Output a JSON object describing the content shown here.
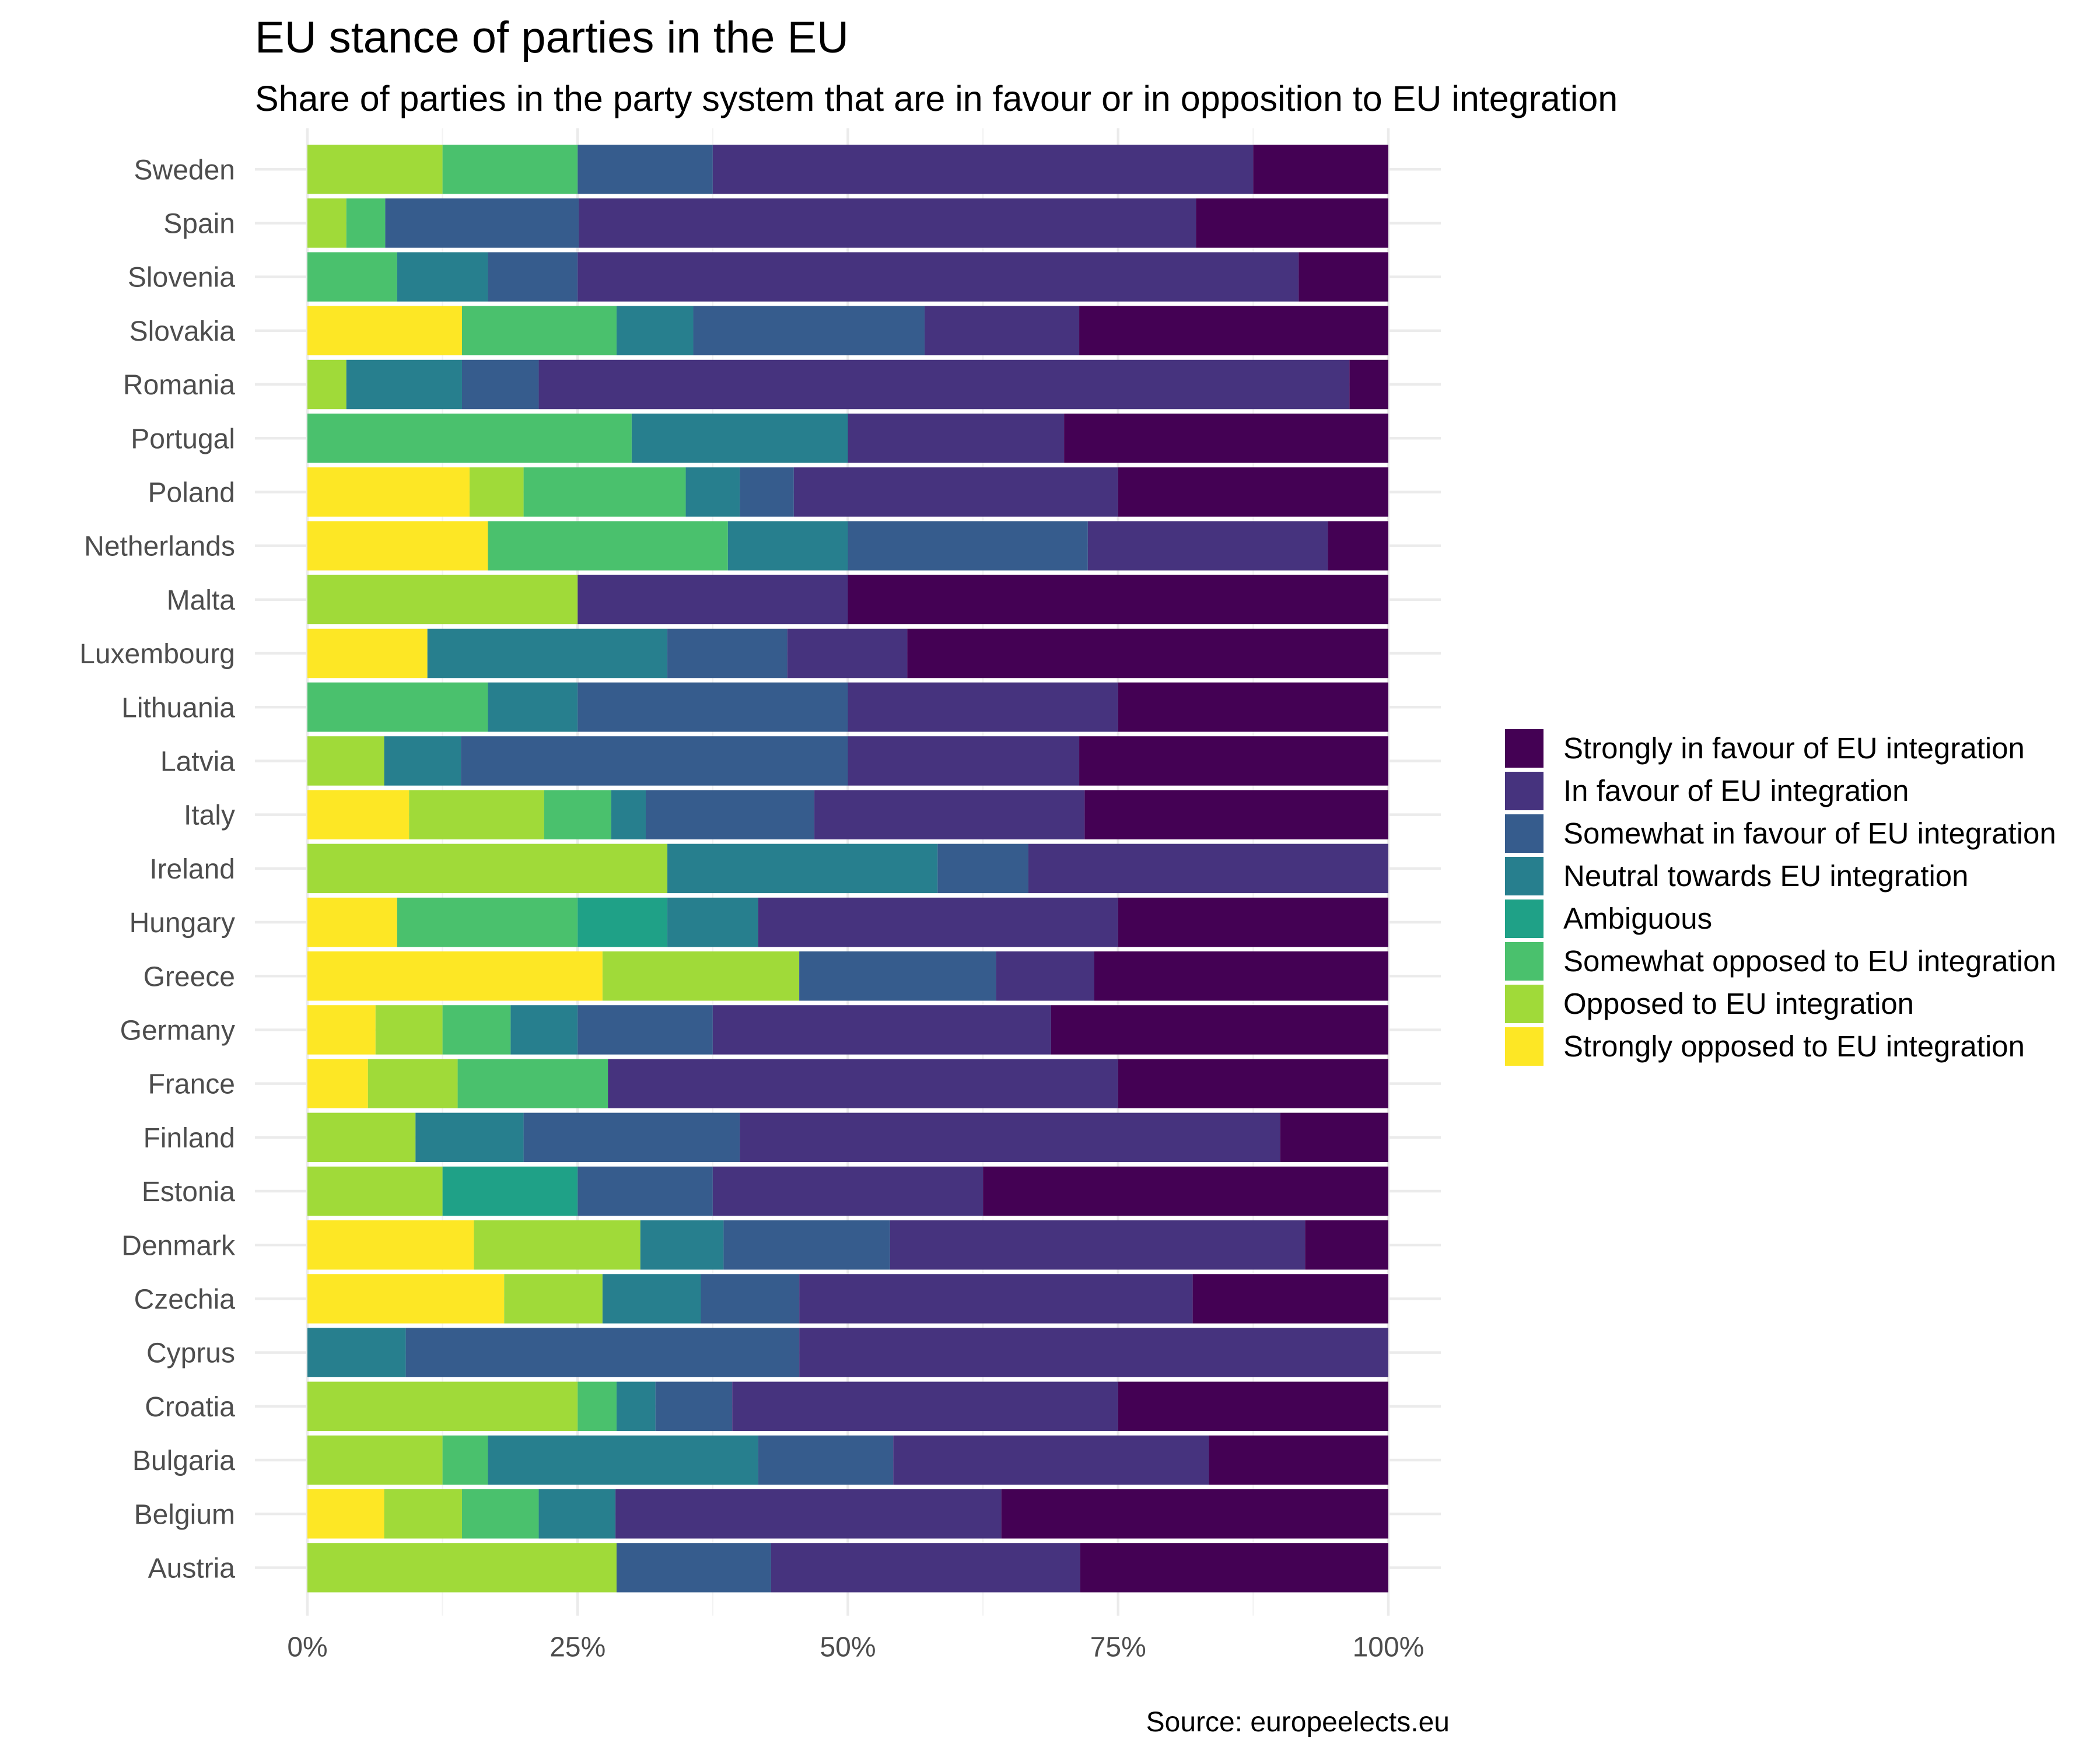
{
  "chart_data": {
    "type": "bar",
    "orientation": "horizontal",
    "stacked": "percent",
    "title": "EU stance of parties in the EU",
    "subtitle": "Share of parties in the party system that are in favour or in opposition to EU integration",
    "caption": "Source: europeelects.eu",
    "xlabel": "",
    "ylabel": "",
    "xlim": [
      0,
      100
    ],
    "x_ticks": [
      "0%",
      "25%",
      "50%",
      "75%",
      "100%"
    ],
    "grid": true,
    "legend_position": "right",
    "categories": [
      "Sweden",
      "Spain",
      "Slovenia",
      "Slovakia",
      "Romania",
      "Portugal",
      "Poland",
      "Netherlands",
      "Malta",
      "Luxembourg",
      "Lithuania",
      "Latvia",
      "Italy",
      "Ireland",
      "Hungary",
      "Greece",
      "Germany",
      "France",
      "Finland",
      "Estonia",
      "Denmark",
      "Czechia",
      "Cyprus",
      "Croatia",
      "Bulgaria",
      "Belgium",
      "Austria"
    ],
    "series": [
      {
        "name": "Strongly opposed to EU integration",
        "color": "#fde725",
        "values": [
          0,
          0,
          0,
          14.3,
          0,
          0,
          15,
          16.7,
          0,
          11.1,
          0,
          0,
          9.4,
          0,
          8.3,
          27.3,
          6.3,
          5.6,
          0,
          0,
          15.4,
          18.2,
          0,
          0,
          0,
          7.1,
          0
        ]
      },
      {
        "name": "Opposed to EU integration",
        "color": "#a0da39",
        "values": [
          12.5,
          3.6,
          0,
          0,
          3.6,
          0,
          5,
          0,
          25,
          0,
          0,
          7.1,
          12.5,
          33.3,
          0,
          18.2,
          6.2,
          8.3,
          10,
          12.5,
          15.4,
          9.1,
          0,
          25,
          12.5,
          7.2,
          28.6
        ]
      },
      {
        "name": "Somewhat opposed to EU integration",
        "color": "#4ac16d",
        "values": [
          12.5,
          3.6,
          8.3,
          14.3,
          0,
          30,
          15,
          22.2,
          0,
          0,
          16.7,
          0,
          6.2,
          0,
          16.7,
          0,
          6.3,
          13.9,
          0,
          0,
          0,
          0,
          0,
          3.6,
          4.2,
          7.1,
          0
        ]
      },
      {
        "name": "Ambiguous",
        "color": "#1fa187",
        "values": [
          0,
          0,
          0,
          0,
          0,
          0,
          0,
          0,
          0,
          0,
          0,
          0,
          0,
          0,
          8.3,
          0,
          0,
          0,
          0,
          12.5,
          0,
          0,
          0,
          0,
          0,
          0,
          0
        ]
      },
      {
        "name": "Neutral towards EU integration",
        "color": "#277f8e",
        "values": [
          0,
          0,
          8.4,
          7.1,
          10.7,
          20,
          5,
          11.1,
          0,
          22.2,
          8.3,
          7.1,
          3.2,
          25,
          8.4,
          0,
          6.2,
          0,
          10,
          0,
          7.7,
          9.1,
          9.1,
          3.6,
          25,
          7.1,
          0
        ]
      },
      {
        "name": "Somewhat in favour of EU integration",
        "color": "#365c8d",
        "values": [
          12.5,
          17.9,
          8.3,
          21.4,
          7.1,
          0,
          5,
          22.2,
          0,
          11.1,
          25,
          35.8,
          15.6,
          8.4,
          0,
          18.2,
          12.5,
          0,
          20,
          12.5,
          15.4,
          9.1,
          36.4,
          7.1,
          12.5,
          0,
          14.3
        ]
      },
      {
        "name": "In favour of EU integration",
        "color": "#46337e",
        "values": [
          50,
          57.1,
          66.7,
          14.3,
          75,
          20,
          30,
          22.2,
          25,
          11.1,
          25,
          21.4,
          25,
          33.3,
          33.3,
          9.1,
          31.3,
          47.2,
          50,
          25,
          38.4,
          36.4,
          54.5,
          35.7,
          29.2,
          35.7,
          28.6
        ]
      },
      {
        "name": "Strongly in favour of EU integration",
        "color": "#440154",
        "values": [
          12.5,
          17.8,
          8.3,
          28.6,
          3.6,
          30,
          25,
          5.6,
          50,
          44.5,
          25,
          28.6,
          28.1,
          0,
          25,
          27.2,
          31.2,
          25,
          10,
          37.5,
          7.7,
          18.1,
          0,
          25,
          16.6,
          35.8,
          28.5
        ]
      }
    ]
  }
}
